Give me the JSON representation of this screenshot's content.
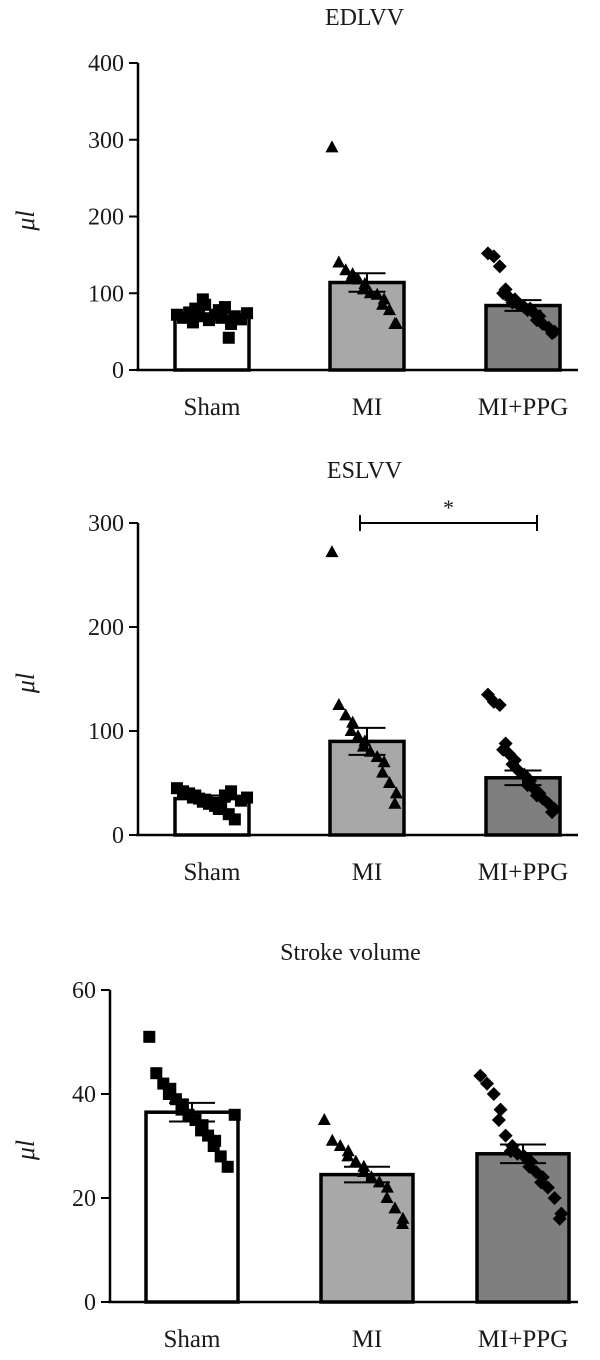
{
  "chart_data": [
    {
      "type": "bar",
      "title": "EDLVV",
      "ylabel": "μl",
      "ylim": [
        0,
        400
      ],
      "yticks": [
        0,
        100,
        200,
        300,
        400
      ],
      "categories": [
        "Sham",
        "MI",
        "MI+PPG"
      ],
      "values": [
        70,
        114,
        84
      ],
      "sem": [
        4,
        12,
        7
      ],
      "bar_colors": [
        "#ffffff",
        "#a8a8a8",
        "#7f7f7f"
      ],
      "markers": [
        "square",
        "triangle",
        "diamond"
      ],
      "points": [
        [
          72,
          68,
          75,
          80,
          62,
          70,
          85,
          92,
          65,
          72,
          68,
          78,
          82,
          60,
          42,
          70,
          66,
          74
        ],
        [
          290,
          140,
          130,
          125,
          120,
          118,
          112,
          105,
          100,
          98,
          92,
          85,
          78,
          60,
          60
        ],
        [
          152,
          148,
          135,
          105,
          100,
          95,
          92,
          88,
          85,
          82,
          80,
          78,
          75,
          70,
          65,
          60,
          55,
          50,
          48
        ]
      ]
    },
    {
      "type": "bar",
      "title": "ESLVV",
      "ylabel": "μl",
      "ylim": [
        0,
        300
      ],
      "yticks": [
        0,
        100,
        200,
        300
      ],
      "categories": [
        "Sham",
        "MI",
        "MI+PPG"
      ],
      "values": [
        35,
        90,
        55
      ],
      "sem": [
        3,
        13,
        7
      ],
      "bar_colors": [
        "#ffffff",
        "#a8a8a8",
        "#7f7f7f"
      ],
      "markers": [
        "square",
        "triangle",
        "diamond"
      ],
      "points": [
        [
          45,
          42,
          40,
          38,
          36,
          35,
          34,
          32,
          30,
          28,
          26,
          25,
          38,
          42,
          20,
          15,
          33,
          36
        ],
        [
          272,
          125,
          115,
          108,
          100,
          95,
          90,
          85,
          80,
          75,
          70,
          60,
          50,
          40,
          30
        ],
        [
          135,
          128,
          125,
          88,
          82,
          78,
          72,
          68,
          62,
          58,
          52,
          48,
          45,
          40,
          38,
          35,
          30,
          25,
          22
        ]
      ],
      "significance": {
        "from": 1,
        "to": 2,
        "y": 300,
        "label": "*"
      }
    },
    {
      "type": "bar",
      "title": "Stroke volume",
      "ylabel": "μl",
      "ylim": [
        0,
        60
      ],
      "yticks": [
        0,
        20,
        40,
        60
      ],
      "categories": [
        "Sham",
        "MI",
        "MI+PPG"
      ],
      "values": [
        36.5,
        24.5,
        28.5
      ],
      "sem": [
        1.8,
        1.5,
        1.8
      ],
      "bar_colors": [
        "#ffffff",
        "#a8a8a8",
        "#7f7f7f"
      ],
      "markers": [
        "square",
        "triangle",
        "diamond"
      ],
      "points": [
        [
          51,
          44,
          42,
          41,
          40,
          39,
          38,
          37,
          36,
          35,
          34,
          33,
          32,
          31,
          30,
          28,
          26,
          36
        ],
        [
          35,
          31,
          30,
          29,
          28,
          27,
          26,
          25,
          24,
          23,
          22,
          20,
          18,
          16,
          15
        ],
        [
          43.5,
          42,
          40,
          37,
          35,
          32,
          30,
          29,
          28.5,
          28,
          27,
          26,
          25,
          24,
          23,
          22,
          20,
          17,
          16
        ]
      ]
    }
  ]
}
